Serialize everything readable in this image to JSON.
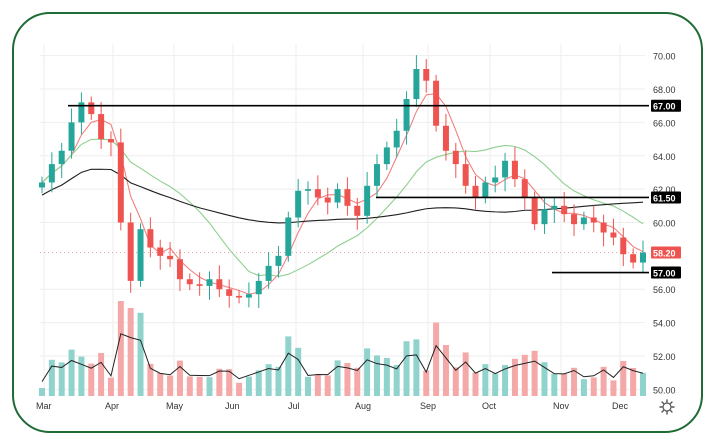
{
  "chart_data": {
    "type": "candlestick",
    "x_labels": [
      "Mar",
      "Apr",
      "May",
      "Jun",
      "Jul",
      "Aug",
      "Sep",
      "Oct",
      "Nov",
      "Dec"
    ],
    "y_ticks": [
      "70.00",
      "68.00",
      "66.00",
      "64.00",
      "62.00",
      "60.00",
      "56.00",
      "54.00",
      "52.00",
      "50.00"
    ],
    "ylim": [
      49.6,
      70.7
    ],
    "price_label": "58.20",
    "price_value": 58.2,
    "level_labels": [
      "67.00",
      "61.50",
      "57.00"
    ],
    "levels": [
      {
        "value": 67.0,
        "label_index": 0
      },
      {
        "value": 61.5,
        "label_index": 1
      },
      {
        "value": 57.0,
        "label_index": 2
      }
    ],
    "closes": [
      62.4,
      63.5,
      64.3,
      66.0,
      67.2,
      66.5,
      65.0,
      64.8,
      60.0,
      56.5,
      59.6,
      58.5,
      58.0,
      57.8,
      56.6,
      56.3,
      56.2,
      56.6,
      56.0,
      55.6,
      55.5,
      55.7,
      56.5,
      57.4,
      58.0,
      60.3,
      61.9,
      62.0,
      61.5,
      61.2,
      62.0,
      61.0,
      60.4,
      62.2,
      63.5,
      64.5,
      65.5,
      67.4,
      69.2,
      68.5,
      65.8,
      64.3,
      63.5,
      62.2,
      61.5,
      62.4,
      62.7,
      63.7,
      62.6,
      61.5,
      59.9,
      60.8,
      61.0,
      60.5,
      59.9,
      60.3,
      60.0,
      59.4,
      59.1,
      58.1,
      57.6,
      58.2
    ],
    "colors": {
      "up": "#26a69a",
      "down": "#ef5350",
      "ma_fast": "#f28080",
      "ma_mid": "#8fcf8f",
      "ma_slow": "#1f1f1f",
      "border": "#1e6b35",
      "level_line": "#000000"
    }
  }
}
